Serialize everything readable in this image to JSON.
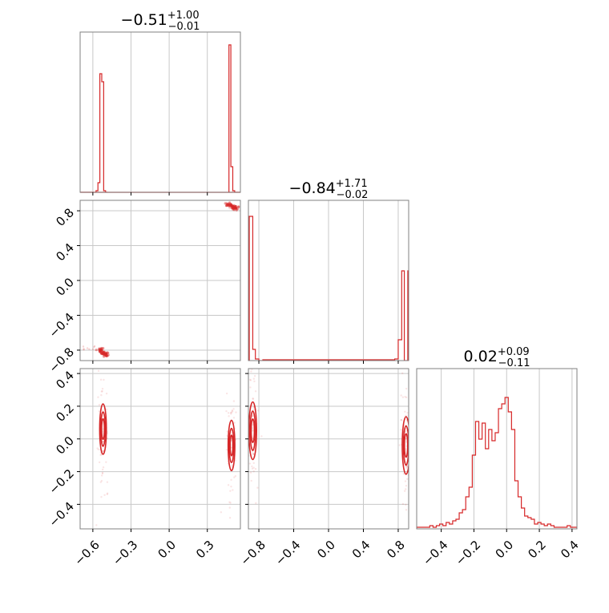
{
  "figure": {
    "type": "corner-plot",
    "color": "#d62728",
    "grid": true,
    "contour_levels": 3
  },
  "chart_data": [
    {
      "type": "histogram",
      "panel": "1-1",
      "title": {
        "value": "−0.51",
        "upper": "+1.00",
        "lower": "−0.01"
      },
      "xlim": [
        -0.7,
        0.56
      ],
      "ylim": [
        0,
        1
      ],
      "x_ticks": [
        -0.6,
        -0.3,
        0.0,
        0.3
      ],
      "bin_edges": [
        -0.575,
        -0.56,
        -0.545,
        -0.53,
        -0.515,
        -0.5,
        -0.485,
        0.47,
        0.485,
        0.5,
        0.515,
        0.53,
        0.545
      ],
      "values": [
        0.01,
        0.06,
        0.74,
        0.69,
        0.01,
        0,
        0,
        0.92,
        0.16,
        0.01,
        0,
        0
      ]
    },
    {
      "type": "scatter-density",
      "panel": "2-1",
      "xlim": [
        -0.7,
        0.56
      ],
      "ylim": [
        -0.92,
        0.92
      ],
      "y_ticks": [
        -0.8,
        -0.4,
        0.0,
        0.4,
        0.8
      ],
      "y_tick_labels": [
        "−0.8",
        "−0.4",
        "0.0",
        "0.4",
        "0.8"
      ],
      "clusters": [
        {
          "x": [
            -0.54,
            -0.52,
            -0.5
          ],
          "y": [
            -0.8,
            -0.83,
            -0.85
          ]
        },
        {
          "x": [
            0.47,
            0.5,
            0.52
          ],
          "y": [
            0.87,
            0.85,
            0.83
          ]
        }
      ]
    },
    {
      "type": "histogram",
      "panel": "2-2",
      "title": {
        "value": "−0.84",
        "upper": "+1.71",
        "lower": "−0.02"
      },
      "xlim": [
        -0.92,
        0.92
      ],
      "ylim": [
        0,
        1
      ],
      "x_ticks": [
        -0.8,
        -0.4,
        0.0,
        0.4,
        0.8
      ],
      "bin_edges": [
        -0.91,
        -0.87,
        -0.84,
        -0.8,
        -0.76,
        0.76,
        0.8,
        0.84,
        0.87,
        0.91
      ],
      "values": [
        0.9,
        0.07,
        0.01,
        0,
        0,
        0.01,
        0.13,
        0.56,
        0.0
      ]
    },
    {
      "type": "contour",
      "panel": "3-1",
      "xlim": [
        -0.7,
        0.56
      ],
      "ylim": [
        -0.55,
        0.43
      ],
      "x_ticks": [
        -0.6,
        -0.3,
        0.0,
        0.3
      ],
      "x_tick_labels": [
        "−0.6",
        "−0.3",
        "0.0",
        "0.3"
      ],
      "y_ticks": [
        -0.4,
        -0.2,
        0.0,
        0.2,
        0.4
      ],
      "y_tick_labels": [
        "−0.4",
        "−0.2",
        "0.0",
        "0.2",
        "0.4"
      ],
      "peaks": [
        {
          "x": -0.52,
          "y": 0.06,
          "sx": 0.012,
          "sy": 0.07
        },
        {
          "x": 0.49,
          "y": -0.04,
          "sx": 0.012,
          "sy": 0.07
        }
      ]
    },
    {
      "type": "contour",
      "panel": "3-2",
      "xlim": [
        -0.92,
        0.92
      ],
      "ylim": [
        -0.55,
        0.43
      ],
      "x_ticks": [
        -0.8,
        -0.4,
        0.0,
        0.4,
        0.8
      ],
      "x_tick_labels": [
        "−0.8",
        "−0.4",
        "0.0",
        "0.4",
        "0.8"
      ],
      "peaks": [
        {
          "x": -0.87,
          "y": 0.05,
          "sx": 0.02,
          "sy": 0.08
        },
        {
          "x": 0.89,
          "y": -0.04,
          "sx": 0.02,
          "sy": 0.08
        }
      ]
    },
    {
      "type": "histogram",
      "panel": "3-3",
      "title": {
        "value": "0.02",
        "upper": "+0.09",
        "lower": "−0.11"
      },
      "xlim": [
        -0.55,
        0.43
      ],
      "ylim": [
        0,
        1
      ],
      "x_ticks": [
        -0.4,
        -0.2,
        0.0,
        0.2,
        0.4
      ],
      "x_tick_labels": [
        "−0.4",
        "−0.2",
        "0.0",
        "0.2",
        "0.4"
      ],
      "bin_start": -0.55,
      "bin_width": 0.02,
      "values": [
        0.01,
        0.01,
        0.01,
        0.01,
        0.02,
        0.01,
        0.02,
        0.03,
        0.02,
        0.04,
        0.03,
        0.05,
        0.06,
        0.1,
        0.12,
        0.2,
        0.26,
        0.46,
        0.67,
        0.56,
        0.66,
        0.5,
        0.62,
        0.55,
        0.6,
        0.75,
        0.78,
        0.82,
        0.73,
        0.62,
        0.3,
        0.2,
        0.13,
        0.08,
        0.07,
        0.06,
        0.03,
        0.04,
        0.03,
        0.02,
        0.03,
        0.02,
        0.01,
        0.01,
        0.01,
        0.01,
        0.02,
        0.01,
        0.01
      ]
    }
  ]
}
